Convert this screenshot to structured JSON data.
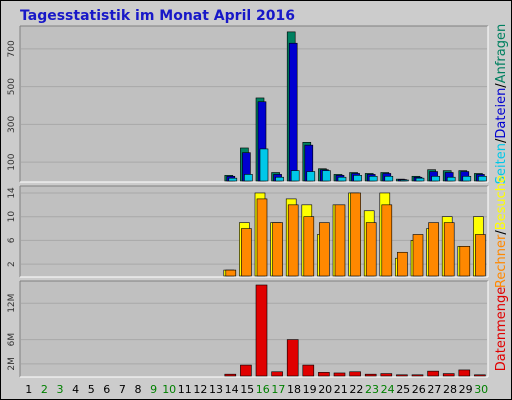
{
  "chart_data": {
    "type": "bar",
    "title": "Tagesstatistik im Monat April 2016",
    "days": [
      "1",
      "2",
      "3",
      "4",
      "5",
      "6",
      "7",
      "8",
      "9",
      "10",
      "11",
      "12",
      "13",
      "14",
      "15",
      "16",
      "17",
      "18",
      "19",
      "20",
      "21",
      "22",
      "23",
      "24",
      "25",
      "26",
      "27",
      "28",
      "29",
      "30"
    ],
    "weekend_days": [
      "2",
      "3",
      "9",
      "10",
      "16",
      "17",
      "23",
      "24",
      "30"
    ],
    "colors": {
      "anfragen": "#008060",
      "dateien": "#0000d0",
      "seiten": "#00c8e8",
      "besuche": "#ffff00",
      "rechner": "#ff8800",
      "datenmenge": "#e00000",
      "weekday_label": "#000000",
      "weekend_label": "#008000",
      "background": "#c0c0c0",
      "frame": "#cccccc"
    },
    "panels": [
      {
        "id": "requests",
        "side_label": [
          {
            "text": "Seiten",
            "color": "#00c8e8"
          },
          {
            "text": "/",
            "color": "#000000"
          },
          {
            "text": "Dateien",
            "color": "#0000d0"
          },
          {
            "text": "/",
            "color": "#000000"
          },
          {
            "text": "Anfragen",
            "color": "#008060"
          }
        ],
        "ticks": [
          "100",
          "300",
          "500",
          "700"
        ],
        "tick_values": [
          100,
          300,
          500,
          700
        ],
        "ylim": [
          0,
          800
        ],
        "series": [
          {
            "name": "Anfragen",
            "color": "#008060",
            "values": [
              0,
              0,
              0,
              0,
              0,
              0,
              0,
              0,
              0,
              0,
              0,
              0,
              0,
              30,
              175,
              440,
              45,
              790,
              205,
              65,
              35,
              45,
              40,
              45,
              10,
              25,
              60,
              55,
              55,
              40
            ]
          },
          {
            "name": "Dateien",
            "color": "#0000d0",
            "values": [
              0,
              0,
              0,
              0,
              0,
              0,
              0,
              0,
              0,
              0,
              0,
              0,
              0,
              25,
              150,
              420,
              35,
              730,
              190,
              60,
              30,
              40,
              35,
              40,
              8,
              20,
              50,
              45,
              50,
              35
            ]
          },
          {
            "name": "Seiten",
            "color": "#00c8e8",
            "values": [
              0,
              0,
              0,
              0,
              0,
              0,
              0,
              0,
              0,
              0,
              0,
              0,
              0,
              15,
              35,
              170,
              20,
              55,
              50,
              55,
              20,
              30,
              25,
              25,
              5,
              15,
              25,
              20,
              25,
              25
            ]
          }
        ]
      },
      {
        "id": "visits",
        "side_label": [
          {
            "text": "Rechner",
            "color": "#ff8800"
          },
          {
            "text": "/",
            "color": "#000000"
          },
          {
            "text": "Besuche",
            "color": "#ffff00"
          }
        ],
        "ticks": [
          "2",
          "6",
          "10",
          "14"
        ],
        "tick_values": [
          2,
          6,
          10,
          14
        ],
        "ylim": [
          0,
          14.5
        ],
        "series": [
          {
            "name": "Besuche",
            "color": "#ffff00",
            "values": [
              0,
              0,
              0,
              0,
              0,
              0,
              0,
              0,
              0,
              0,
              0,
              0,
              0,
              1,
              9,
              14,
              9,
              13,
              12,
              7,
              12,
              14,
              11,
              14,
              3,
              6,
              8,
              10,
              5,
              10
            ]
          },
          {
            "name": "Rechner",
            "color": "#ff8800",
            "values": [
              0,
              0,
              0,
              0,
              0,
              0,
              0,
              0,
              0,
              0,
              0,
              0,
              0,
              1,
              8,
              13,
              9,
              12,
              10,
              9,
              12,
              14,
              9,
              12,
              4,
              7,
              9,
              9,
              5,
              7
            ]
          }
        ]
      },
      {
        "id": "traffic",
        "side_label": [
          {
            "text": "Datenmenge",
            "color": "#e00000"
          }
        ],
        "ticks": [
          "2M",
          "6M",
          "12M"
        ],
        "tick_values": [
          2,
          6,
          12
        ],
        "ylim": [
          0,
          15
        ],
        "series": [
          {
            "name": "Datenmenge",
            "color": "#e00000",
            "values": [
              0,
              0,
              0,
              0,
              0,
              0,
              0,
              0,
              0,
              0,
              0,
              0,
              0,
              0.3,
              1.8,
              15,
              0.7,
              6,
              1.8,
              0.6,
              0.5,
              0.7,
              0.3,
              0.4,
              0.2,
              0.2,
              0.8,
              0.4,
              1.0,
              0.2
            ]
          }
        ]
      }
    ]
  }
}
